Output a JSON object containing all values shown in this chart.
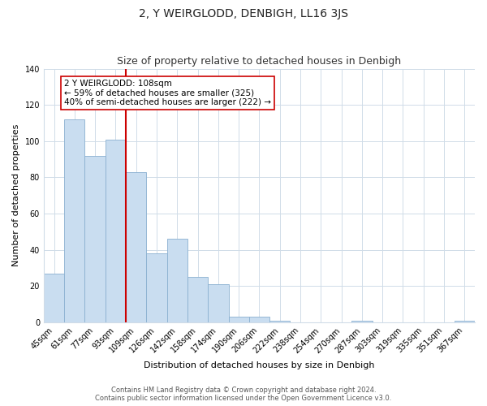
{
  "title": "2, Y WEIRGLODD, DENBIGH, LL16 3JS",
  "subtitle": "Size of property relative to detached houses in Denbigh",
  "xlabel": "Distribution of detached houses by size in Denbigh",
  "ylabel": "Number of detached properties",
  "bar_labels": [
    "45sqm",
    "61sqm",
    "77sqm",
    "93sqm",
    "109sqm",
    "126sqm",
    "142sqm",
    "158sqm",
    "174sqm",
    "190sqm",
    "206sqm",
    "222sqm",
    "238sqm",
    "254sqm",
    "270sqm",
    "287sqm",
    "303sqm",
    "319sqm",
    "335sqm",
    "351sqm",
    "367sqm"
  ],
  "bar_values": [
    27,
    112,
    92,
    101,
    83,
    38,
    46,
    25,
    21,
    3,
    3,
    1,
    0,
    0,
    0,
    1,
    0,
    0,
    0,
    0,
    1
  ],
  "bar_color": "#c9ddf0",
  "bar_edge_color": "#8ab0d0",
  "vline_x_index": 4,
  "vline_color": "#cc0000",
  "annotation_line1": "2 Y WEIRGLODD: 108sqm",
  "annotation_line2": "← 59% of detached houses are smaller (325)",
  "annotation_line3": "40% of semi-detached houses are larger (222) →",
  "ylim": [
    0,
    140
  ],
  "yticks": [
    0,
    20,
    40,
    60,
    80,
    100,
    120,
    140
  ],
  "footer_line1": "Contains HM Land Registry data © Crown copyright and database right 2024.",
  "footer_line2": "Contains public sector information licensed under the Open Government Licence v3.0.",
  "background_color": "#ffffff",
  "grid_color": "#d0dce8",
  "title_fontsize": 10,
  "subtitle_fontsize": 9,
  "axis_label_fontsize": 8,
  "tick_fontsize": 7,
  "annotation_fontsize": 7.5,
  "footer_fontsize": 6
}
